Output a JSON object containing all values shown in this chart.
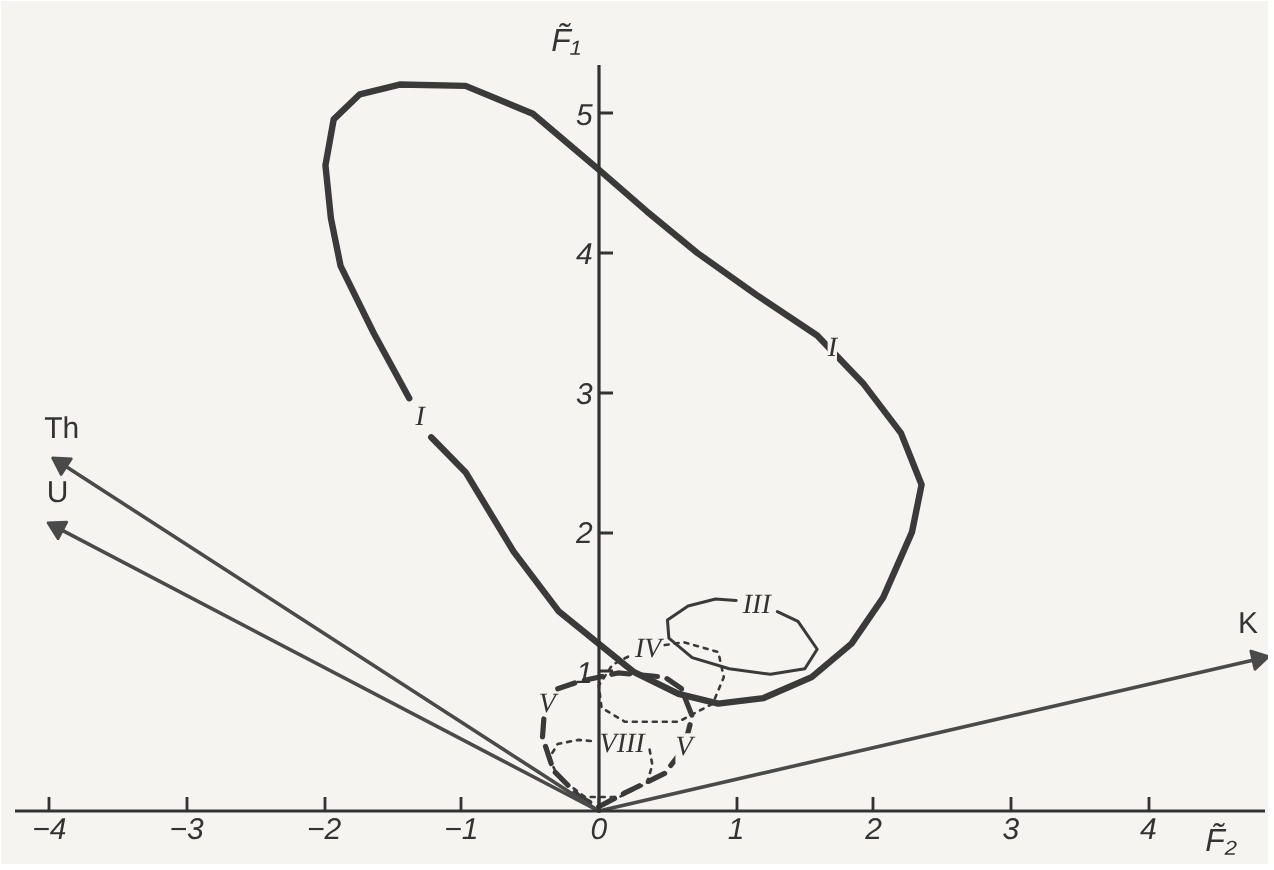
{
  "chart_data": {
    "type": "line",
    "xlabel": "F̃₂",
    "ylabel": "F̃₁",
    "xlim": [
      -4.25,
      4.85
    ],
    "ylim": [
      0,
      5.35
    ],
    "xticks": [
      -4,
      -3,
      -2,
      -1,
      0,
      1,
      2,
      3,
      4
    ],
    "yticks": [
      1,
      2,
      3,
      4,
      5
    ],
    "series": [
      {
        "name": "I",
        "color": "#3a3a3a",
        "line_style": "solid",
        "x": [
          -1.22,
          -0.97,
          -0.62,
          -0.29,
          0.0,
          0.25,
          0.58,
          0.87,
          1.2,
          1.55,
          1.84,
          2.07,
          2.28,
          2.35,
          2.2,
          1.93,
          1.59,
          1.15,
          0.72,
          0.35,
          0.0,
          -0.48,
          -0.97,
          -1.45,
          -1.74,
          -1.93,
          -1.99,
          -1.95,
          -1.88,
          -1.64,
          -1.38
        ],
        "values": [
          2.68,
          2.43,
          1.86,
          1.43,
          1.2,
          1.0,
          0.84,
          0.77,
          0.81,
          0.96,
          1.2,
          1.53,
          2.0,
          2.34,
          2.71,
          3.06,
          3.41,
          3.7,
          4.0,
          4.3,
          4.6,
          5.0,
          5.2,
          5.21,
          5.14,
          4.96,
          4.63,
          4.25,
          3.91,
          3.43,
          2.96
        ]
      },
      {
        "name": "III",
        "color": "#3a3a3a",
        "line_style": "solid",
        "x": [
          1.3,
          1.45,
          1.59,
          1.5,
          1.25,
          0.95,
          0.68,
          0.51,
          0.5,
          0.65,
          0.85,
          1.0
        ],
        "values": [
          1.43,
          1.36,
          1.16,
          1.02,
          0.98,
          1.02,
          1.1,
          1.24,
          1.37,
          1.47,
          1.52,
          1.51
        ]
      },
      {
        "name": "IV",
        "color": "#3a3a3a",
        "line_style": "dotted",
        "x": [
          0.48,
          0.62,
          0.87,
          0.91,
          0.83,
          0.58,
          0.19,
          0.02,
          0.0,
          0.1,
          0.24
        ],
        "values": [
          1.19,
          1.21,
          1.14,
          0.96,
          0.77,
          0.64,
          0.64,
          0.74,
          0.9,
          1.05,
          1.12
        ]
      },
      {
        "name": "V",
        "color": "#3a3a3a",
        "line_style": "dashed",
        "x": [
          -0.4,
          -0.41,
          -0.33,
          -0.14,
          0.0,
          0.19,
          0.48,
          0.62,
          0.68,
          0.6,
          0.48,
          0.14,
          -0.14,
          -0.35
        ],
        "values": [
          0.66,
          0.53,
          0.29,
          0.1,
          0.03,
          0.13,
          0.27,
          0.45,
          0.68,
          0.88,
          0.96,
          0.99,
          0.93,
          0.86
        ]
      },
      {
        "name": "VIII",
        "color": "#3a3a3a",
        "line_style": "dotted",
        "x": [
          0.37,
          0.39,
          0.35,
          0.15,
          -0.1,
          -0.3,
          -0.36,
          -0.3,
          -0.15,
          -0.03
        ],
        "values": [
          0.44,
          0.33,
          0.2,
          0.1,
          0.1,
          0.25,
          0.38,
          0.48,
          0.51,
          0.5
        ]
      },
      {
        "name": "Th",
        "color": "#4a4a4a",
        "line_style": "solid",
        "marker": "triangle",
        "x": [
          0,
          -3.91
        ],
        "values": [
          0,
          2.49
        ]
      },
      {
        "name": "U",
        "color": "#4a4a4a",
        "line_style": "solid",
        "marker": "triangle",
        "x": [
          0,
          -3.94
        ],
        "values": [
          0,
          2.03
        ]
      },
      {
        "name": "K",
        "color": "#4a4a4a",
        "line_style": "solid",
        "marker": "triangle",
        "x": [
          0,
          4.8
        ],
        "values": [
          0,
          1.09
        ]
      }
    ],
    "annotations": [
      {
        "text": "I",
        "x": 1.7,
        "y": 3.31
      },
      {
        "text": "V",
        "x": 0.62,
        "y": 0.45
      }
    ]
  }
}
